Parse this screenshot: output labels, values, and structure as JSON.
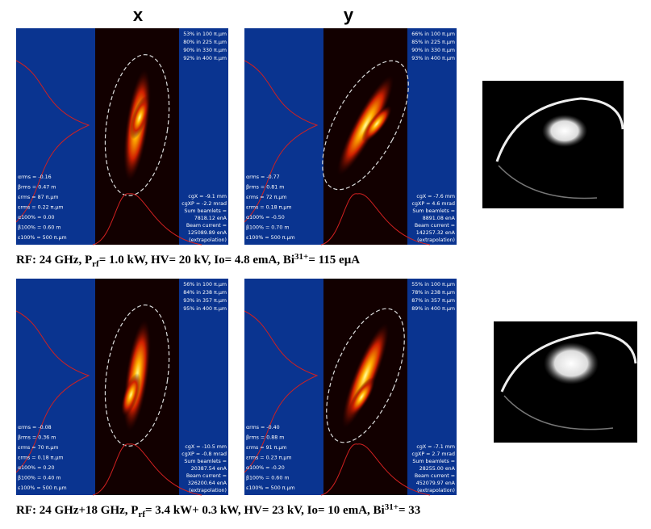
{
  "column_headers": [
    "x",
    "y"
  ],
  "rows": [
    {
      "panels": [
        {
          "top_right": [
            "53% in 100 π.μm",
            "80% in 225 π.μm",
            "90% in 330 π.μm",
            "92% in 400 π.μm"
          ],
          "bottom_left": [
            "αrms = -0.16",
            "βrms = 0.47 m",
            "εrms = 87 π.μm",
            "εrms = 0.22 π.μm",
            "α100% = 0.00",
            "β100% = 0.60 m",
            "ε100% = 500 π.μm"
          ],
          "bottom_right": [
            "cgX = -9.1 mm",
            "cgXP = -2.2 mrad",
            "Sum beamlets =",
            "7818.12 enA",
            "Beam current =",
            "125089.89 enA",
            "(extrapolation)"
          ]
        },
        {
          "top_right": [
            "66% in 100 π.μm",
            "85% in 225 π.μm",
            "90% in 330 π.μm",
            "93% in 400 π.μm"
          ],
          "bottom_left": [
            "αrms = -0.77",
            "βrms = 0.81 m",
            "εrms = 72 π.μm",
            "εrms = 0.18 π.μm",
            "α100% = -0.50",
            "β100% = 0.70 m",
            "ε100% = 500 π.μm"
          ],
          "bottom_right": [
            "cgX = -7.6 mm",
            "cgXP = 4.6 mrad",
            "Sum beamlets =",
            "8891.08 enA",
            "Beam current =",
            "142257.32 enA",
            "(extrapolation)"
          ]
        }
      ],
      "caption": [
        "RF: 24 GHz, P",
        "rf",
        "= 1.0 kW, HV= 20 kV, Io= 4.8 emA, Bi",
        "31+",
        "= 115 eμA"
      ]
    },
    {
      "panels": [
        {
          "top_right": [
            "56% in 100 π.μm",
            "84% in 238 π.μm",
            "93% in 357 π.μm",
            "95% in 400 π.μm"
          ],
          "bottom_left": [
            "αrms = -0.08",
            "βrms = 0.36 m",
            "εrms = 70 π.μm",
            "εrms = 0.18 π.μm",
            "α100% = 0.20",
            "β100% = 0.40 m",
            "ε100% = 500 π.μm"
          ],
          "bottom_right": [
            "cgX = -10.5 mm",
            "cgXP = -0.8 mrad",
            "Sum beamlets =",
            "20387.54 enA",
            "Beam current =",
            "326200.64 enA",
            "(extrapolation)"
          ]
        },
        {
          "top_right": [
            "55% in 100 π.μm",
            "78% in 238 π.μm",
            "87% in 357 π.μm",
            "89% in 400 π.μm"
          ],
          "bottom_left": [
            "αrms = -0.40",
            "βrms = 0.88 m",
            "εrms = 91 π.μm",
            "εrms = 0.23 π.μm",
            "α100% = -0.20",
            "β100% = 0.60 m",
            "ε100% = 500 π.μm"
          ],
          "bottom_right": [
            "cgX = -7.1 mm",
            "cgXP = 2.7 mrad",
            "Sum beamlets =",
            "28255.00 enA",
            "Beam current =",
            "452079.97 enA",
            "(extrapolation)"
          ]
        }
      ],
      "caption": [
        "RF: 24 GHz+18 GHz, P",
        "rf",
        "= 3.4 kW+ 0.3 kW, HV= 23 kV, Io= 10 emA, Bi",
        "31+",
        "= 33"
      ]
    }
  ]
}
